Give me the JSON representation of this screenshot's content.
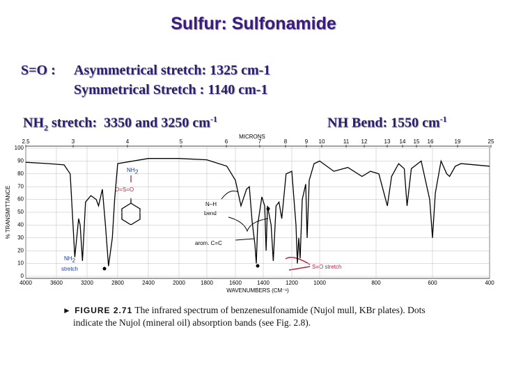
{
  "slide": {
    "title": "Sulfur: Sulfonamide",
    "so_label": "S=O :",
    "so_asym": "Asymmetrical stretch: 1325 cm-1",
    "so_sym": "Symmetrical Stretch : 1140 cm-1",
    "nh2_main": "NH",
    "nh2_sub": "2",
    "nh2_text": " stretch:  3350 and 3250 cm",
    "nh2_sup": "-1",
    "nhbend_text": "NH Bend: 1550 cm",
    "nhbend_sup": "-1"
  },
  "chart_data": {
    "type": "line",
    "x_label": "WAVENUMBERS (CM⁻¹)",
    "y_label": "% TRANSMITTANCE",
    "top_axis": {
      "label": "MICRONS",
      "ticks": [
        2.5,
        3,
        4,
        5,
        6,
        7,
        8,
        9,
        10,
        11,
        12,
        13,
        14,
        15,
        16,
        19,
        25
      ]
    },
    "xlim": [
      4000,
      400
    ],
    "xticks": [
      4000,
      3600,
      3200,
      2800,
      2400,
      2000,
      1800,
      1600,
      1400,
      1200,
      1000,
      800,
      600,
      400
    ],
    "ylim": [
      0,
      100
    ],
    "yticks": [
      0,
      10,
      20,
      30,
      40,
      50,
      60,
      70,
      80,
      90,
      100
    ],
    "grid": true,
    "color": "#000000",
    "x": [
      4000,
      3700,
      3500,
      3420,
      3360,
      3310,
      3290,
      3260,
      3220,
      3150,
      3080,
      3050,
      3000,
      2960,
      2920,
      2870,
      2840,
      2800,
      2400,
      2000,
      1800,
      1660,
      1600,
      1560,
      1520,
      1500,
      1480,
      1460,
      1450,
      1440,
      1410,
      1390,
      1380,
      1370,
      1345,
      1330,
      1310,
      1290,
      1270,
      1240,
      1200,
      1170,
      1160,
      1150,
      1140,
      1125,
      1100,
      1090,
      1075,
      1040,
      1000,
      950,
      900,
      850,
      820,
      790,
      760,
      745,
      720,
      700,
      690,
      675,
      640,
      610,
      600,
      590,
      570,
      550,
      540,
      520,
      500,
      400
    ],
    "values": [
      89,
      88,
      87,
      80,
      15,
      45,
      40,
      12,
      58,
      63,
      60,
      55,
      68,
      40,
      8,
      30,
      60,
      88,
      92,
      92,
      91,
      86,
      75,
      55,
      68,
      70,
      43,
      25,
      10,
      40,
      62,
      55,
      20,
      55,
      40,
      12,
      55,
      58,
      45,
      80,
      82,
      40,
      10,
      30,
      14,
      60,
      72,
      30,
      75,
      88,
      90,
      82,
      85,
      78,
      82,
      80,
      55,
      78,
      88,
      84,
      55,
      84,
      90,
      60,
      30,
      65,
      90,
      80,
      78,
      86,
      88,
      86
    ],
    "annotations": {
      "nh2": "NH",
      "nh2_sub": "2",
      "nh2_stretch": "stretch",
      "nh_bend_1": "N–H",
      "nh_bend_2": "bend",
      "arom": "arom. C=C",
      "so_stretch": "S=O stretch",
      "mol_nh2": "NH",
      "mol_nh2_sub": "2",
      "mol_so2": "O=S=O"
    }
  },
  "figure": {
    "label": "FIGURE 2.71",
    "line1": "The infrared spectrum of benzenesulfonamide (Nujol mull, KBr plates). Dots",
    "line2": "indicate the Nujol (mineral oil) absorption bands (see Fig. 2.8)."
  }
}
